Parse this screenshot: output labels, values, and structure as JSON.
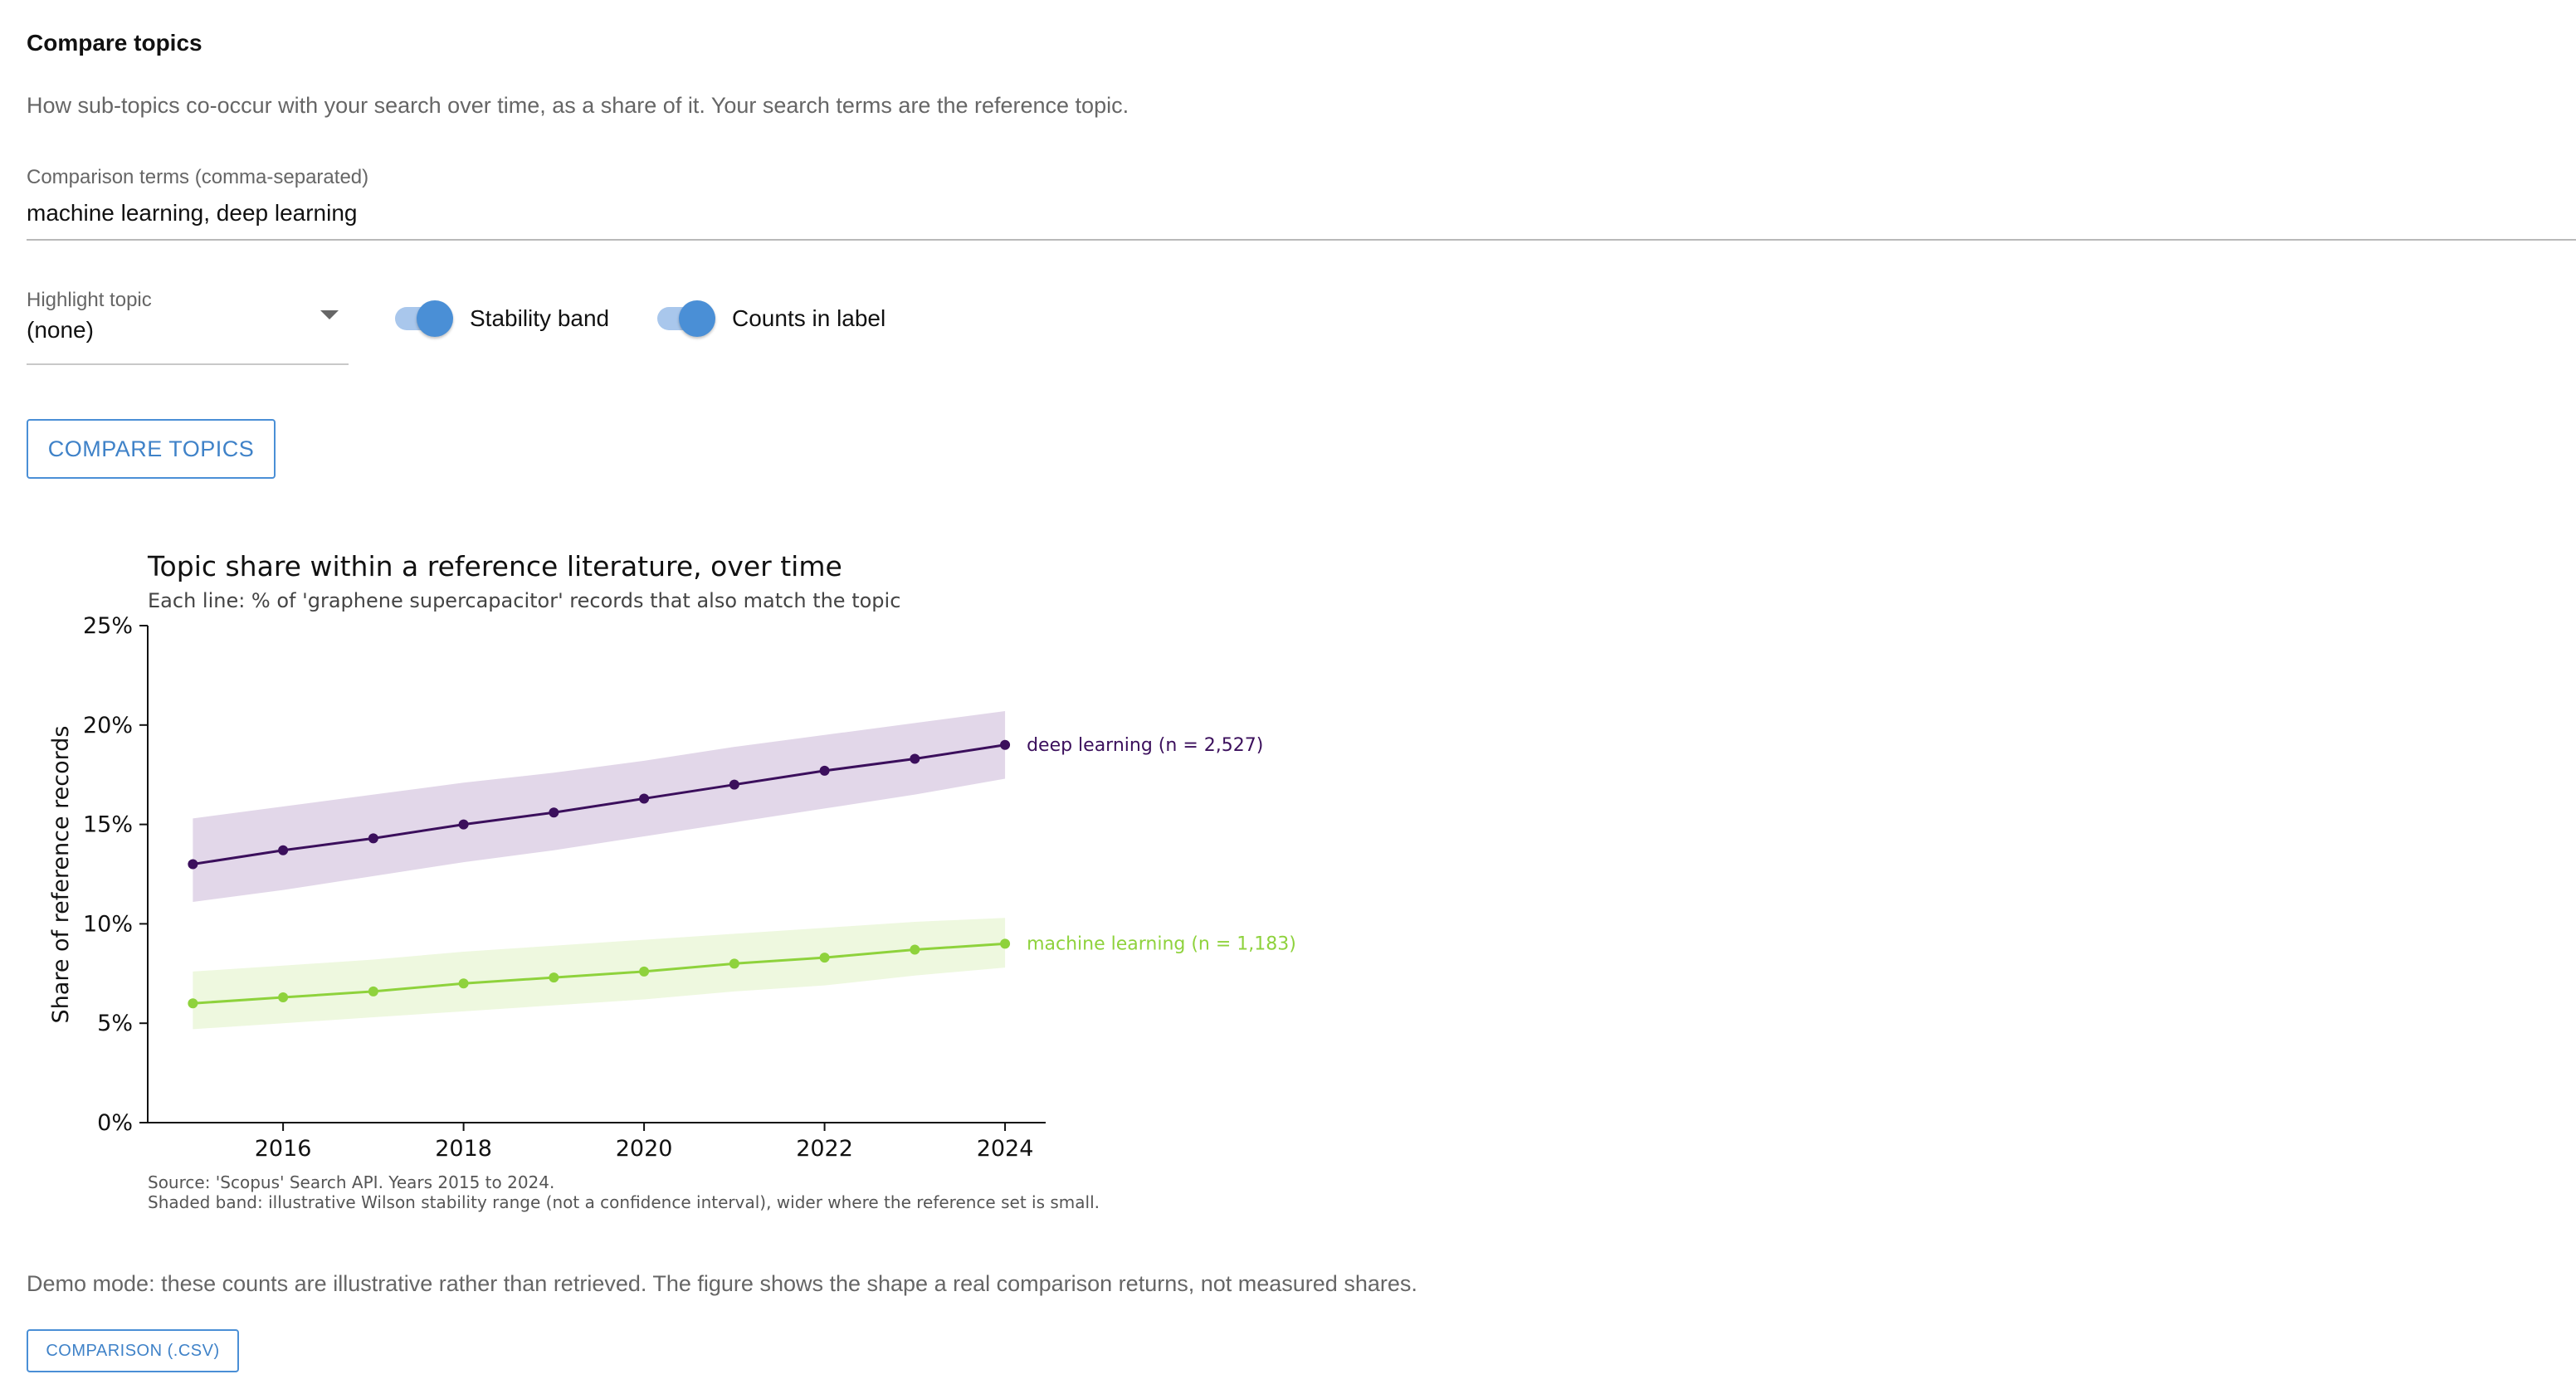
{
  "heading": "Compare topics",
  "description": "How sub-topics co-occur with your search over time, as a share of it. Your search terms are the reference topic.",
  "comparison_field": {
    "label": "Comparison terms (comma-separated)",
    "value": "machine learning, deep learning"
  },
  "highlight_select": {
    "label": "Highlight topic",
    "value": "(none)"
  },
  "toggles": {
    "stability_band": {
      "label": "Stability band",
      "on": true
    },
    "counts_in_label": {
      "label": "Counts in label",
      "on": true
    }
  },
  "compare_button": "Compare topics",
  "demo_note": "Demo mode: these counts are illustrative rather than retrieved. The figure shows the shape a real comparison returns, not measured shares.",
  "download_button": "Comparison (.csv)",
  "colors": {
    "accent": "#4a8fd6",
    "deep_learning": "#3b0f5c",
    "machine_learning": "#8ed23c"
  },
  "chart_data": {
    "type": "line",
    "title": "Topic share within a reference literature, over time",
    "subtitle": "Each line: % of 'graphene supercapacitor' records that also match the topic",
    "ylabel": "Share of reference records",
    "xlabel": "",
    "x": [
      2015,
      2016,
      2017,
      2018,
      2019,
      2020,
      2021,
      2022,
      2023,
      2024
    ],
    "xticks": [
      2016,
      2018,
      2020,
      2022,
      2024
    ],
    "xlim": [
      2014.5,
      2024.45
    ],
    "yticks": [
      "0%",
      "5%",
      "10%",
      "15%",
      "20%",
      "25%"
    ],
    "ylim": [
      0,
      25
    ],
    "grid": false,
    "series": [
      {
        "name": "deep learning",
        "label": "deep learning (n = 2,527)",
        "color": "#3b0f5c",
        "band_color": "#e2d7e9",
        "values": [
          13.0,
          13.7,
          14.3,
          15.0,
          15.6,
          16.3,
          17.0,
          17.7,
          18.3,
          19.0
        ],
        "band_lower": [
          11.1,
          11.7,
          12.4,
          13.1,
          13.7,
          14.4,
          15.1,
          15.8,
          16.5,
          17.3
        ],
        "band_upper": [
          15.3,
          15.9,
          16.5,
          17.1,
          17.6,
          18.2,
          18.9,
          19.5,
          20.1,
          20.7
        ]
      },
      {
        "name": "machine learning",
        "label": "machine learning (n = 1,183)",
        "color": "#8ed23c",
        "band_color": "#eef8df",
        "values": [
          6.0,
          6.3,
          6.6,
          7.0,
          7.3,
          7.6,
          8.0,
          8.3,
          8.7,
          9.0
        ],
        "band_lower": [
          4.7,
          5.0,
          5.3,
          5.6,
          5.9,
          6.2,
          6.6,
          6.9,
          7.4,
          7.8
        ],
        "band_upper": [
          7.6,
          7.9,
          8.2,
          8.6,
          8.9,
          9.2,
          9.5,
          9.8,
          10.1,
          10.3
        ]
      }
    ],
    "source_lines": [
      "Source: 'Scopus' Search API. Years 2015 to 2024.",
      "Shaded band: illustrative Wilson stability range (not a confidence interval), wider where the reference set is small."
    ]
  }
}
